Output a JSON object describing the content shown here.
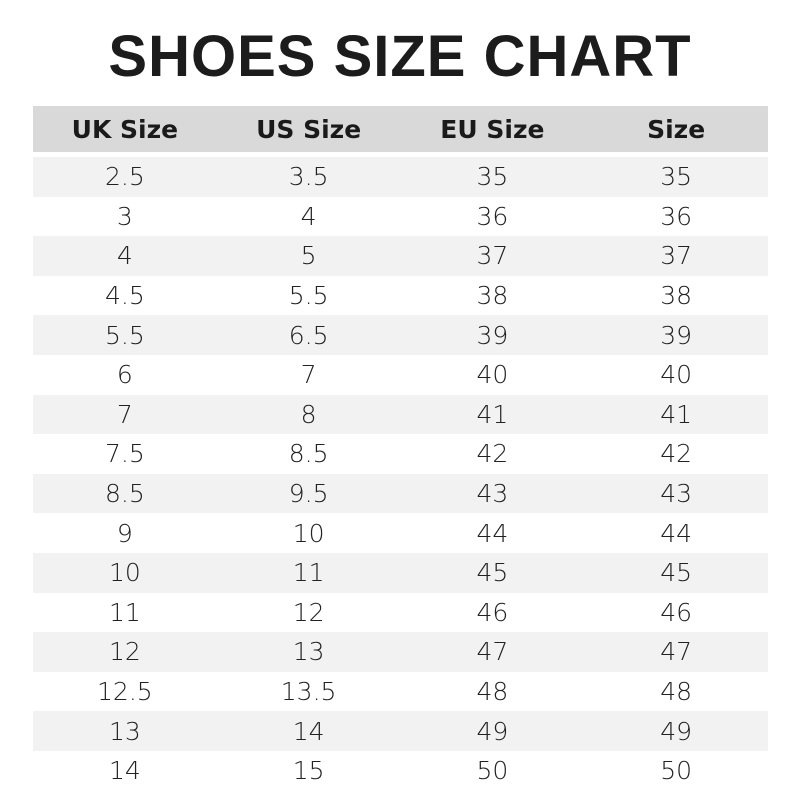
{
  "title": "SHOES SIZE CHART",
  "colors": {
    "header_bg": "#d9d9d9",
    "stripe_bg": "#f2f2f2",
    "text": "#1a1a1a"
  },
  "chart_data": {
    "type": "table",
    "title": "SHOES SIZE CHART",
    "columns": [
      "UK Size",
      "US Size",
      "EU Size",
      "Size"
    ],
    "rows": [
      [
        "2.5",
        "3.5",
        "35",
        "35"
      ],
      [
        "3",
        "4",
        "36",
        "36"
      ],
      [
        "4",
        "5",
        "37",
        "37"
      ],
      [
        "4.5",
        "5.5",
        "38",
        "38"
      ],
      [
        "5.5",
        "6.5",
        "39",
        "39"
      ],
      [
        "6",
        "7",
        "40",
        "40"
      ],
      [
        "7",
        "8",
        "41",
        "41"
      ],
      [
        "7.5",
        "8.5",
        "42",
        "42"
      ],
      [
        "8.5",
        "9.5",
        "43",
        "43"
      ],
      [
        "9",
        "10",
        "44",
        "44"
      ],
      [
        "10",
        "11",
        "45",
        "45"
      ],
      [
        "11",
        "12",
        "46",
        "46"
      ],
      [
        "12",
        "13",
        "47",
        "47"
      ],
      [
        "12.5",
        "13.5",
        "48",
        "48"
      ],
      [
        "13",
        "14",
        "49",
        "49"
      ],
      [
        "14",
        "15",
        "50",
        "50"
      ]
    ]
  }
}
